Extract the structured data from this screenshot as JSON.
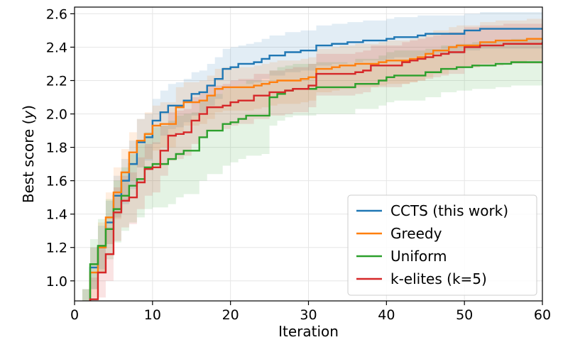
{
  "chart_data": {
    "type": "line",
    "xlabel": "Iteration",
    "ylabel": "Best score (y)",
    "xlim": [
      0,
      60
    ],
    "ylim": [
      0.88,
      2.64
    ],
    "x_ticks": [
      "0",
      "10",
      "20",
      "30",
      "40",
      "50",
      "60"
    ],
    "y_ticks": [
      "1.0",
      "1.2",
      "1.4",
      "1.6",
      "1.8",
      "2.0",
      "2.2",
      "2.4",
      "2.6"
    ],
    "grid": true,
    "legend_position": "lower-right",
    "x": [
      1,
      2,
      3,
      4,
      5,
      6,
      7,
      8,
      9,
      10,
      11,
      12,
      13,
      14,
      15,
      16,
      17,
      18,
      19,
      20,
      21,
      22,
      23,
      24,
      25,
      26,
      27,
      28,
      29,
      30,
      31,
      32,
      33,
      34,
      35,
      36,
      37,
      38,
      39,
      40,
      41,
      42,
      43,
      44,
      45,
      46,
      47,
      48,
      49,
      50,
      51,
      52,
      53,
      54,
      55,
      56,
      57,
      58,
      59,
      60
    ],
    "series": [
      {
        "name": "CCTS (this work)",
        "color": "#1f77b4",
        "values": [
          0.85,
          1.08,
          1.2,
          1.35,
          1.51,
          1.6,
          1.7,
          1.83,
          1.86,
          1.96,
          2.01,
          2.05,
          2.05,
          2.08,
          2.12,
          2.13,
          2.17,
          2.21,
          2.27,
          2.28,
          2.3,
          2.3,
          2.31,
          2.33,
          2.35,
          2.35,
          2.37,
          2.37,
          2.38,
          2.38,
          2.41,
          2.41,
          2.42,
          2.42,
          2.43,
          2.43,
          2.44,
          2.44,
          2.44,
          2.45,
          2.46,
          2.46,
          2.46,
          2.47,
          2.48,
          2.48,
          2.48,
          2.48,
          2.48,
          2.5,
          2.5,
          2.51,
          2.51,
          2.51,
          2.51,
          2.51,
          2.51,
          2.51,
          2.51,
          2.51
        ],
        "band": [
          [
            0.75,
            0.95
          ],
          [
            0.95,
            1.2
          ],
          [
            1.07,
            1.33
          ],
          [
            1.22,
            1.48
          ],
          [
            1.38,
            1.63
          ],
          [
            1.46,
            1.73
          ],
          [
            1.55,
            1.84
          ],
          [
            1.68,
            1.97
          ],
          [
            1.72,
            2.0
          ],
          [
            1.82,
            2.09
          ],
          [
            1.87,
            2.14
          ],
          [
            1.91,
            2.18
          ],
          [
            1.92,
            2.19
          ],
          [
            1.95,
            2.21
          ],
          [
            1.99,
            2.25
          ],
          [
            2.01,
            2.26
          ],
          [
            2.05,
            2.3
          ],
          [
            2.09,
            2.34
          ],
          [
            2.15,
            2.39
          ],
          [
            2.16,
            2.4
          ],
          [
            2.18,
            2.41
          ],
          [
            2.18,
            2.42
          ],
          [
            2.19,
            2.43
          ],
          [
            2.21,
            2.45
          ],
          [
            2.23,
            2.47
          ],
          [
            2.23,
            2.47
          ],
          [
            2.25,
            2.49
          ],
          [
            2.25,
            2.49
          ],
          [
            2.26,
            2.5
          ],
          [
            2.26,
            2.5
          ],
          [
            2.29,
            2.53
          ],
          [
            2.29,
            2.53
          ],
          [
            2.3,
            2.54
          ],
          [
            2.3,
            2.54
          ],
          [
            2.31,
            2.55
          ],
          [
            2.31,
            2.55
          ],
          [
            2.32,
            2.56
          ],
          [
            2.32,
            2.56
          ],
          [
            2.32,
            2.56
          ],
          [
            2.33,
            2.57
          ],
          [
            2.34,
            2.58
          ],
          [
            2.34,
            2.58
          ],
          [
            2.34,
            2.58
          ],
          [
            2.35,
            2.59
          ],
          [
            2.36,
            2.59
          ],
          [
            2.36,
            2.59
          ],
          [
            2.36,
            2.59
          ],
          [
            2.36,
            2.59
          ],
          [
            2.36,
            2.59
          ],
          [
            2.38,
            2.6
          ],
          [
            2.38,
            2.6
          ],
          [
            2.39,
            2.61
          ],
          [
            2.39,
            2.61
          ],
          [
            2.39,
            2.61
          ],
          [
            2.39,
            2.61
          ],
          [
            2.39,
            2.61
          ],
          [
            2.39,
            2.61
          ],
          [
            2.39,
            2.61
          ],
          [
            2.39,
            2.61
          ],
          [
            2.39,
            2.61
          ]
        ]
      },
      {
        "name": "Greedy",
        "color": "#ff7f0e",
        "values": [
          0.85,
          1.05,
          1.2,
          1.38,
          1.53,
          1.65,
          1.77,
          1.84,
          1.88,
          1.93,
          1.94,
          1.94,
          2.04,
          2.07,
          2.07,
          2.08,
          2.11,
          2.15,
          2.16,
          2.16,
          2.16,
          2.16,
          2.17,
          2.18,
          2.19,
          2.2,
          2.2,
          2.2,
          2.21,
          2.22,
          2.27,
          2.27,
          2.28,
          2.29,
          2.29,
          2.3,
          2.3,
          2.3,
          2.31,
          2.32,
          2.32,
          2.32,
          2.33,
          2.34,
          2.36,
          2.38,
          2.38,
          2.4,
          2.41,
          2.41,
          2.41,
          2.43,
          2.43,
          2.44,
          2.44,
          2.44,
          2.44,
          2.45,
          2.45,
          2.45
        ],
        "band": [
          [
            0.75,
            0.95
          ],
          [
            0.9,
            1.2
          ],
          [
            1.05,
            1.35
          ],
          [
            1.22,
            1.53
          ],
          [
            1.37,
            1.68
          ],
          [
            1.48,
            1.79
          ],
          [
            1.6,
            1.89
          ],
          [
            1.68,
            1.97
          ],
          [
            1.73,
            2.01
          ],
          [
            1.78,
            2.05
          ],
          [
            1.8,
            2.07
          ],
          [
            1.8,
            2.07
          ],
          [
            1.89,
            2.16
          ],
          [
            1.93,
            2.19
          ],
          [
            1.93,
            2.19
          ],
          [
            1.94,
            2.2
          ],
          [
            1.97,
            2.23
          ],
          [
            2.01,
            2.27
          ],
          [
            2.02,
            2.28
          ],
          [
            2.02,
            2.28
          ],
          [
            2.02,
            2.28
          ],
          [
            2.02,
            2.28
          ],
          [
            2.03,
            2.29
          ],
          [
            2.04,
            2.3
          ],
          [
            2.05,
            2.31
          ],
          [
            2.06,
            2.32
          ],
          [
            2.06,
            2.32
          ],
          [
            2.06,
            2.32
          ],
          [
            2.07,
            2.33
          ],
          [
            2.08,
            2.34
          ],
          [
            2.13,
            2.39
          ],
          [
            2.13,
            2.39
          ],
          [
            2.14,
            2.4
          ],
          [
            2.15,
            2.41
          ],
          [
            2.15,
            2.41
          ],
          [
            2.16,
            2.42
          ],
          [
            2.16,
            2.42
          ],
          [
            2.16,
            2.42
          ],
          [
            2.17,
            2.43
          ],
          [
            2.18,
            2.44
          ],
          [
            2.18,
            2.44
          ],
          [
            2.18,
            2.44
          ],
          [
            2.19,
            2.45
          ],
          [
            2.2,
            2.46
          ],
          [
            2.22,
            2.48
          ],
          [
            2.24,
            2.5
          ],
          [
            2.24,
            2.5
          ],
          [
            2.27,
            2.52
          ],
          [
            2.28,
            2.53
          ],
          [
            2.28,
            2.53
          ],
          [
            2.28,
            2.53
          ],
          [
            2.3,
            2.55
          ],
          [
            2.3,
            2.55
          ],
          [
            2.31,
            2.56
          ],
          [
            2.31,
            2.56
          ],
          [
            2.31,
            2.56
          ],
          [
            2.31,
            2.56
          ],
          [
            2.32,
            2.57
          ],
          [
            2.32,
            2.57
          ],
          [
            2.32,
            2.57
          ]
        ]
      },
      {
        "name": "Uniform",
        "color": "#2ca02c",
        "values": [
          0.85,
          1.1,
          1.21,
          1.31,
          1.43,
          1.51,
          1.57,
          1.61,
          1.68,
          1.7,
          1.7,
          1.73,
          1.76,
          1.78,
          1.78,
          1.86,
          1.9,
          1.9,
          1.94,
          1.95,
          1.97,
          1.99,
          1.99,
          1.99,
          2.1,
          2.12,
          2.14,
          2.15,
          2.15,
          2.15,
          2.16,
          2.16,
          2.16,
          2.16,
          2.16,
          2.18,
          2.18,
          2.18,
          2.2,
          2.22,
          2.23,
          2.23,
          2.23,
          2.23,
          2.25,
          2.25,
          2.27,
          2.27,
          2.28,
          2.28,
          2.29,
          2.29,
          2.29,
          2.3,
          2.3,
          2.31,
          2.31,
          2.31,
          2.31,
          2.31
        ],
        "band": [
          [
            0.75,
            0.95
          ],
          [
            0.95,
            1.25
          ],
          [
            1.05,
            1.37
          ],
          [
            1.13,
            1.49
          ],
          [
            1.23,
            1.6
          ],
          [
            1.3,
            1.68
          ],
          [
            1.35,
            1.76
          ],
          [
            1.38,
            1.82
          ],
          [
            1.43,
            1.89
          ],
          [
            1.44,
            1.92
          ],
          [
            1.44,
            1.93
          ],
          [
            1.46,
            1.96
          ],
          [
            1.5,
            1.99
          ],
          [
            1.52,
            2.0
          ],
          [
            1.52,
            2.01
          ],
          [
            1.6,
            2.08
          ],
          [
            1.64,
            2.11
          ],
          [
            1.64,
            2.12
          ],
          [
            1.69,
            2.15
          ],
          [
            1.71,
            2.16
          ],
          [
            1.73,
            2.18
          ],
          [
            1.75,
            2.2
          ],
          [
            1.75,
            2.2
          ],
          [
            1.76,
            2.2
          ],
          [
            1.93,
            2.26
          ],
          [
            1.96,
            2.28
          ],
          [
            1.98,
            2.29
          ],
          [
            1.99,
            2.3
          ],
          [
            1.99,
            2.3
          ],
          [
            1.99,
            2.3
          ],
          [
            2.0,
            2.31
          ],
          [
            2.0,
            2.31
          ],
          [
            2.0,
            2.31
          ],
          [
            2.0,
            2.31
          ],
          [
            2.0,
            2.31
          ],
          [
            2.03,
            2.33
          ],
          [
            2.03,
            2.33
          ],
          [
            2.03,
            2.33
          ],
          [
            2.05,
            2.35
          ],
          [
            2.07,
            2.37
          ],
          [
            2.08,
            2.38
          ],
          [
            2.08,
            2.38
          ],
          [
            2.08,
            2.38
          ],
          [
            2.08,
            2.38
          ],
          [
            2.1,
            2.39
          ],
          [
            2.1,
            2.39
          ],
          [
            2.13,
            2.41
          ],
          [
            2.13,
            2.41
          ],
          [
            2.14,
            2.42
          ],
          [
            2.14,
            2.42
          ],
          [
            2.15,
            2.43
          ],
          [
            2.15,
            2.43
          ],
          [
            2.15,
            2.43
          ],
          [
            2.16,
            2.44
          ],
          [
            2.16,
            2.44
          ],
          [
            2.17,
            2.45
          ],
          [
            2.17,
            2.45
          ],
          [
            2.17,
            2.45
          ],
          [
            2.17,
            2.45
          ],
          [
            2.17,
            2.45
          ]
        ]
      },
      {
        "name": "k-elites (k=5)",
        "color": "#d62728",
        "values": [
          0.75,
          0.89,
          1.05,
          1.16,
          1.41,
          1.48,
          1.5,
          1.59,
          1.67,
          1.68,
          1.78,
          1.87,
          1.88,
          1.89,
          1.96,
          2.0,
          2.04,
          2.04,
          2.05,
          2.07,
          2.08,
          2.08,
          2.11,
          2.11,
          2.13,
          2.13,
          2.14,
          2.15,
          2.15,
          2.17,
          2.24,
          2.24,
          2.24,
          2.24,
          2.24,
          2.25,
          2.26,
          2.29,
          2.29,
          2.29,
          2.29,
          2.31,
          2.32,
          2.33,
          2.34,
          2.35,
          2.36,
          2.37,
          2.37,
          2.4,
          2.4,
          2.41,
          2.41,
          2.41,
          2.42,
          2.42,
          2.42,
          2.42,
          2.42,
          2.43
        ],
        "band": [
          [
            0.65,
            0.85
          ],
          [
            0.76,
            1.02
          ],
          [
            0.9,
            1.2
          ],
          [
            1.0,
            1.32
          ],
          [
            1.24,
            1.56
          ],
          [
            1.32,
            1.63
          ],
          [
            1.34,
            1.65
          ],
          [
            1.43,
            1.74
          ],
          [
            1.51,
            1.82
          ],
          [
            1.53,
            1.83
          ],
          [
            1.63,
            1.93
          ],
          [
            1.72,
            2.01
          ],
          [
            1.73,
            2.02
          ],
          [
            1.75,
            2.03
          ],
          [
            1.82,
            2.1
          ],
          [
            1.86,
            2.13
          ],
          [
            1.9,
            2.17
          ],
          [
            1.9,
            2.17
          ],
          [
            1.91,
            2.18
          ],
          [
            1.93,
            2.2
          ],
          [
            1.94,
            2.21
          ],
          [
            1.94,
            2.21
          ],
          [
            1.97,
            2.24
          ],
          [
            1.97,
            2.24
          ],
          [
            1.99,
            2.26
          ],
          [
            1.99,
            2.26
          ],
          [
            2.0,
            2.27
          ],
          [
            2.01,
            2.28
          ],
          [
            2.01,
            2.28
          ],
          [
            2.04,
            2.3
          ],
          [
            2.11,
            2.36
          ],
          [
            2.11,
            2.36
          ],
          [
            2.11,
            2.36
          ],
          [
            2.11,
            2.36
          ],
          [
            2.11,
            2.36
          ],
          [
            2.12,
            2.37
          ],
          [
            2.13,
            2.38
          ],
          [
            2.16,
            2.41
          ],
          [
            2.16,
            2.41
          ],
          [
            2.16,
            2.41
          ],
          [
            2.16,
            2.41
          ],
          [
            2.18,
            2.43
          ],
          [
            2.19,
            2.44
          ],
          [
            2.2,
            2.45
          ],
          [
            2.21,
            2.46
          ],
          [
            2.22,
            2.47
          ],
          [
            2.23,
            2.48
          ],
          [
            2.24,
            2.49
          ],
          [
            2.24,
            2.49
          ],
          [
            2.28,
            2.52
          ],
          [
            2.28,
            2.52
          ],
          [
            2.29,
            2.53
          ],
          [
            2.29,
            2.53
          ],
          [
            2.29,
            2.53
          ],
          [
            2.3,
            2.54
          ],
          [
            2.3,
            2.54
          ],
          [
            2.3,
            2.54
          ],
          [
            2.3,
            2.54
          ],
          [
            2.3,
            2.54
          ],
          [
            2.31,
            2.55
          ]
        ]
      }
    ]
  }
}
